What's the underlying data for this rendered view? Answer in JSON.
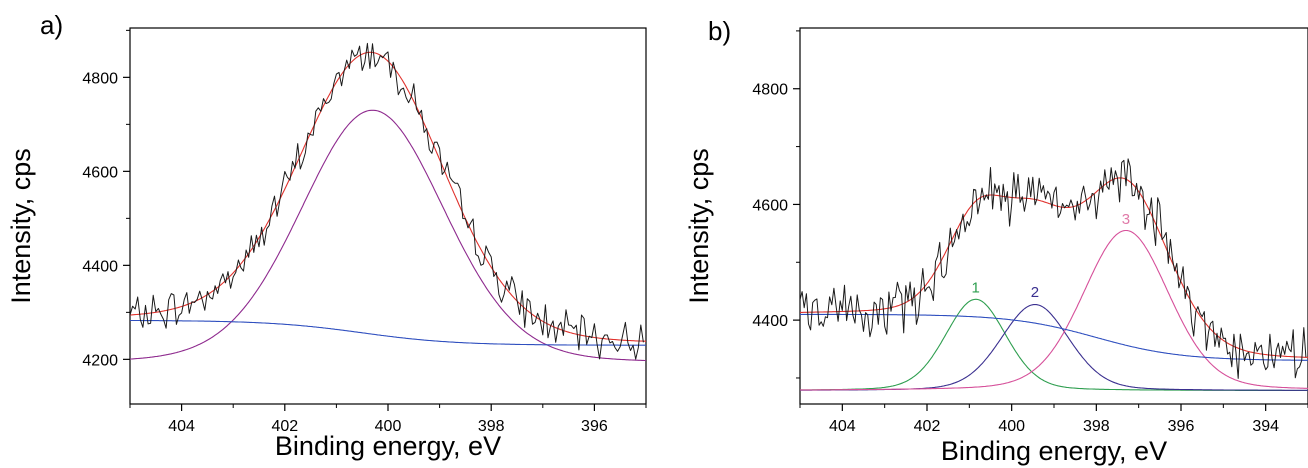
{
  "chart_data": [
    {
      "panel_label": "a)",
      "type": "line",
      "xlabel": "Binding energy, eV",
      "ylabel": "Intensity, cps",
      "xlim": [
        405,
        395
      ],
      "x_reversed": true,
      "ylim": [
        4105,
        4905
      ],
      "xticks": [
        404,
        402,
        400,
        398,
        396
      ],
      "yticks": [
        4200,
        4400,
        4600,
        4800
      ],
      "grid": false,
      "legend": "none",
      "raw_noise_amplitude": 32,
      "raw_x_step": 0.05,
      "background": {
        "color": "#2f4fbf",
        "high": 4283,
        "low": 4230,
        "center": 400.5,
        "width": 0.9
      },
      "series": [
        {
          "role": "fit-envelope",
          "color": "#e0322d",
          "components": [
            "background",
            "peak"
          ]
        },
        {
          "role": "component-peak",
          "color": "#8e2a8e",
          "offset": 0,
          "peak": {
            "center": 400.3,
            "amplitude": 4600,
            "fwhm": 3.3,
            "gl": 0.85
          }
        },
        {
          "role": "background",
          "color": "#2f4fbf"
        },
        {
          "role": "experimental",
          "color": "#1a1a1a"
        }
      ],
      "peak_labels": []
    },
    {
      "panel_label": "b)",
      "type": "line",
      "xlabel": "Binding energy, eV",
      "ylabel": "Intensity, cps",
      "xlim": [
        405,
        393
      ],
      "x_reversed": true,
      "ylim": [
        4255,
        4905
      ],
      "xticks": [
        404,
        402,
        400,
        398,
        396,
        394
      ],
      "yticks": [
        4400,
        4600,
        4800
      ],
      "grid": false,
      "legend": "none",
      "raw_noise_amplitude": 38,
      "raw_x_step": 0.05,
      "background": {
        "color": "#2f4fbf",
        "high": 4410,
        "low": 4330,
        "center": 398.0,
        "width": 1.0
      },
      "series": [
        {
          "role": "fit-envelope",
          "color": "#e0322d",
          "components": [
            "background",
            "peak1",
            "peak2",
            "peak3"
          ]
        },
        {
          "role": "component-peak",
          "name": "1",
          "color": "#2e9e4f",
          "offset": 4278,
          "peak": {
            "center": 400.85,
            "amplitude": 158,
            "fwhm": 1.7,
            "gl": 0.8
          }
        },
        {
          "role": "component-peak",
          "name": "2",
          "color": "#3a2f8f",
          "offset": 4278,
          "peak": {
            "center": 399.45,
            "amplitude": 149,
            "fwhm": 1.9,
            "gl": 0.8
          }
        },
        {
          "role": "component-peak",
          "name": "3",
          "color": "#d6509a",
          "offset": 4278,
          "peak": {
            "center": 397.3,
            "amplitude": 277,
            "fwhm": 2.4,
            "gl": 0.8
          }
        },
        {
          "role": "background",
          "color": "#2f4fbf"
        },
        {
          "role": "experimental",
          "color": "#1a1a1a"
        }
      ],
      "peak_labels": [
        {
          "text": "1",
          "x": 400.85,
          "y": 4448,
          "color": "#2e9e4f"
        },
        {
          "text": "2",
          "x": 399.45,
          "y": 4440,
          "color": "#3a2f8f"
        },
        {
          "text": "3",
          "x": 397.3,
          "y": 4566,
          "color": "#e07aa8"
        }
      ]
    }
  ]
}
